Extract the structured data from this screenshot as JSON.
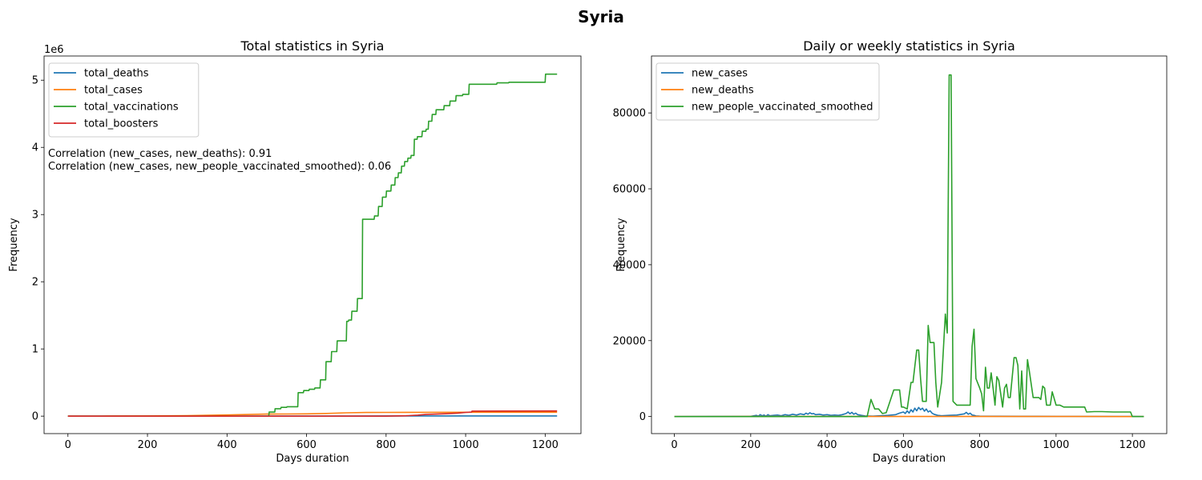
{
  "figure": {
    "suptitle": "Syria"
  },
  "chart_data": [
    {
      "type": "line",
      "title": "Total statistics in Syria",
      "xlabel": "Days duration",
      "ylabel": "Frequency",
      "y_offset_label": "1e6",
      "xlim": [
        -60,
        1290
      ],
      "ylim": [
        -260000,
        5360000
      ],
      "xticks": [
        0,
        200,
        400,
        600,
        800,
        1000,
        1200
      ],
      "yticks": [
        0,
        1000000,
        2000000,
        3000000,
        4000000,
        5000000
      ],
      "ytick_labels": [
        "0",
        "1",
        "2",
        "3",
        "4",
        "5"
      ],
      "legend_position": "upper left",
      "annotations": [
        "Correlation (new_cases, new_deaths): 0.91",
        "Correlation (new_cases, new_people_vaccinated_smoothed): 0.06"
      ],
      "series": [
        {
          "name": "total_deaths",
          "color": "#1f77b4",
          "x": [
            0,
            200,
            400,
            500,
            600,
            700,
            800,
            900,
            1000,
            1100,
            1230
          ],
          "y": [
            0,
            0,
            0,
            500,
            1500,
            2500,
            3000,
            3100,
            3150,
            3160,
            3165
          ]
        },
        {
          "name": "total_cases",
          "color": "#ff7f0e",
          "x": [
            0,
            100,
            200,
            300,
            400,
            500,
            550,
            600,
            650,
            700,
            750,
            800,
            850,
            900,
            1000,
            1230
          ],
          "y": [
            0,
            1000,
            3000,
            8000,
            18000,
            30000,
            32000,
            34000,
            40000,
            50000,
            54000,
            56000,
            56500,
            57000,
            57400,
            57500
          ]
        },
        {
          "name": "total_vaccinations",
          "color": "#2ca02c",
          "x": [
            0,
            505,
            506,
            520,
            521,
            535,
            536,
            550,
            551,
            578,
            579,
            592,
            593,
            606,
            607,
            620,
            621,
            634,
            635,
            648,
            649,
            662,
            663,
            676,
            677,
            700,
            701,
            705,
            706,
            713,
            714,
            727,
            728,
            740,
            741,
            770,
            771,
            780,
            781,
            790,
            791,
            800,
            801,
            812,
            813,
            822,
            823,
            830,
            831,
            838,
            839,
            846,
            847,
            854,
            855,
            862,
            863,
            870,
            871,
            878,
            879,
            890,
            891,
            900,
            901,
            906,
            907,
            915,
            916,
            925,
            926,
            945,
            946,
            960,
            961,
            975,
            976,
            992,
            993,
            1008,
            1009,
            1078,
            1079,
            1108,
            1109,
            1200,
            1201,
            1230
          ],
          "y": [
            0,
            0,
            60000,
            60000,
            110000,
            110000,
            130000,
            130000,
            140000,
            140000,
            350000,
            350000,
            380000,
            380000,
            400000,
            400000,
            420000,
            420000,
            540000,
            540000,
            810000,
            810000,
            960000,
            960000,
            1120000,
            1120000,
            1410000,
            1410000,
            1430000,
            1430000,
            1560000,
            1560000,
            1750000,
            1750000,
            2930000,
            2930000,
            2980000,
            2980000,
            3120000,
            3120000,
            3260000,
            3260000,
            3350000,
            3350000,
            3440000,
            3440000,
            3550000,
            3550000,
            3620000,
            3620000,
            3720000,
            3720000,
            3790000,
            3790000,
            3840000,
            3840000,
            3880000,
            3880000,
            4120000,
            4120000,
            4160000,
            4160000,
            4240000,
            4240000,
            4270000,
            4270000,
            4390000,
            4390000,
            4490000,
            4490000,
            4560000,
            4560000,
            4620000,
            4620000,
            4690000,
            4690000,
            4770000,
            4770000,
            4790000,
            4790000,
            4940000,
            4940000,
            4960000,
            4960000,
            4970000,
            4970000,
            5090000,
            5090000
          ]
        },
        {
          "name": "total_boosters",
          "color": "#d62728",
          "x": [
            0,
            600,
            800,
            850,
            880,
            900,
            950,
            980,
            1000,
            1015,
            1016,
            1100,
            1230
          ],
          "y": [
            0,
            0,
            0,
            5000,
            15000,
            25000,
            35000,
            45000,
            55000,
            60000,
            75000,
            76000,
            77000
          ]
        }
      ]
    },
    {
      "type": "line",
      "title": "Daily or weekly statistics in Syria",
      "xlabel": "Days duration",
      "ylabel": "Frequency",
      "xlim": [
        -60,
        1290
      ],
      "ylim": [
        -4500,
        95000
      ],
      "xticks": [
        0,
        200,
        400,
        600,
        800,
        1000,
        1200
      ],
      "yticks": [
        0,
        20000,
        40000,
        60000,
        80000
      ],
      "legend_position": "upper left",
      "series": [
        {
          "name": "new_cases",
          "color": "#1f77b4",
          "x": [
            0,
            200,
            215,
            220,
            225,
            230,
            235,
            240,
            245,
            250,
            260,
            270,
            280,
            290,
            300,
            310,
            320,
            330,
            340,
            345,
            350,
            355,
            360,
            365,
            370,
            380,
            390,
            400,
            410,
            420,
            430,
            440,
            450,
            455,
            460,
            465,
            470,
            475,
            480,
            490,
            500,
            520,
            540,
            560,
            580,
            590,
            600,
            605,
            610,
            615,
            620,
            625,
            630,
            635,
            640,
            645,
            650,
            655,
            660,
            665,
            670,
            675,
            680,
            690,
            700,
            720,
            740,
            760,
            765,
            770,
            775,
            780,
            785,
            790,
            800,
            850,
            900,
            950,
            1000,
            1050,
            1100,
            1150,
            1200,
            1230
          ],
          "y": [
            0,
            50,
            300,
            100,
            500,
            200,
            400,
            100,
            500,
            200,
            300,
            400,
            200,
            500,
            300,
            600,
            400,
            700,
            500,
            900,
            600,
            1000,
            700,
            800,
            500,
            600,
            400,
            500,
            300,
            400,
            300,
            500,
            800,
            1200,
            700,
            1100,
            600,
            900,
            500,
            300,
            150,
            100,
            200,
            300,
            500,
            900,
            1200,
            800,
            1500,
            900,
            1800,
            1200,
            2200,
            1500,
            2400,
            1800,
            2200,
            1400,
            2000,
            1200,
            1500,
            900,
            600,
            300,
            200,
            300,
            400,
            700,
            1100,
            600,
            900,
            400,
            300,
            150,
            100,
            80,
            60,
            50,
            40,
            30,
            20,
            15,
            10,
            0
          ]
        },
        {
          "name": "new_deaths",
          "color": "#ff7f0e",
          "x": [
            0,
            200,
            300,
            400,
            500,
            600,
            700,
            800,
            900,
            1000,
            1100,
            1200,
            1230
          ],
          "y": [
            0,
            2,
            5,
            8,
            10,
            12,
            15,
            8,
            4,
            2,
            1,
            0,
            0
          ]
        },
        {
          "name": "new_people_vaccinated_smoothed",
          "color": "#2ca02c",
          "x": [
            0,
            505,
            515,
            525,
            535,
            545,
            555,
            575,
            580,
            590,
            595,
            600,
            610,
            620,
            625,
            635,
            640,
            645,
            650,
            660,
            665,
            670,
            680,
            685,
            690,
            700,
            710,
            715,
            720,
            725,
            730,
            740,
            750,
            760,
            770,
            775,
            780,
            785,
            790,
            800,
            805,
            810,
            815,
            820,
            825,
            830,
            835,
            840,
            845,
            850,
            860,
            865,
            870,
            875,
            880,
            890,
            895,
            900,
            905,
            910,
            915,
            920,
            925,
            930,
            940,
            950,
            955,
            960,
            965,
            970,
            975,
            985,
            990,
            1000,
            1010,
            1020,
            1030,
            1050,
            1075,
            1080,
            1100,
            1120,
            1150,
            1180,
            1195,
            1200,
            1230
          ],
          "y": [
            0,
            0,
            4500,
            2000,
            2000,
            800,
            1000,
            7000,
            7000,
            7000,
            2500,
            2500,
            2000,
            9000,
            9000,
            17500,
            17500,
            10000,
            4000,
            4000,
            24000,
            19500,
            19500,
            9000,
            2500,
            9000,
            27000,
            22000,
            90000,
            90000,
            4000,
            3000,
            3000,
            3000,
            3000,
            3000,
            18500,
            23000,
            10000,
            7500,
            6000,
            1500,
            13000,
            7500,
            7500,
            11500,
            7500,
            3000,
            10500,
            9500,
            2500,
            7500,
            8500,
            5000,
            5000,
            15500,
            15500,
            13500,
            2000,
            12000,
            2000,
            2000,
            15000,
            12000,
            5000,
            5000,
            5000,
            4500,
            8000,
            7500,
            3000,
            3000,
            6500,
            3000,
            3000,
            2500,
            2500,
            2500,
            2500,
            1200,
            1300,
            1300,
            1200,
            1200,
            1200,
            0,
            0
          ]
        }
      ]
    }
  ]
}
